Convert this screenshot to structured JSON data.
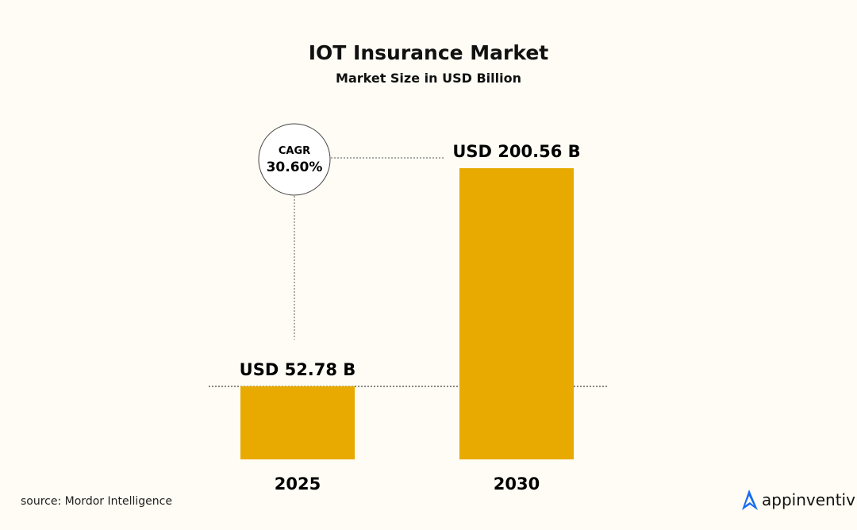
{
  "chart_data": {
    "type": "bar",
    "title": "IOT Insurance Market",
    "subtitle": "Market Size in USD Billion",
    "categories": [
      "2025",
      "2030"
    ],
    "values": [
      52.78,
      200.56
    ],
    "data_labels": [
      "USD 52.78 B",
      "USD 200.56 B"
    ],
    "unit": "USD Billion",
    "bar_color": "#e8aa00",
    "annotation": {
      "label": "CAGR",
      "value": "30.60%"
    },
    "grid": false,
    "legend": "none"
  },
  "source": "source: Mordor Intelligence",
  "logo": {
    "text": "appinventiv",
    "icon": "appinventiv-a-icon",
    "color": "#1a6cf0"
  },
  "background": "#fefcf4"
}
